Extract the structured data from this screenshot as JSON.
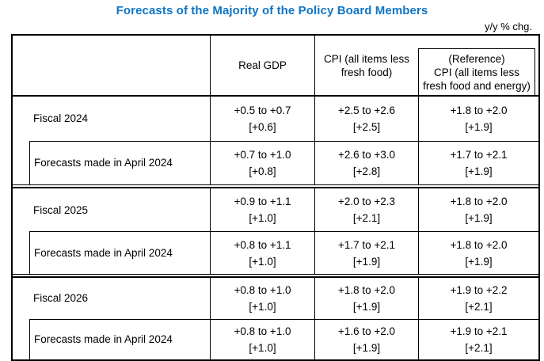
{
  "title": "Forecasts of the Majority of the Policy Board Members",
  "unit_note": "y/y % chg.",
  "header": {
    "label": "",
    "real_gdp": "Real GDP",
    "cpi": "CPI (all items less\nfresh food)",
    "reference": "(Reference)\nCPI (all items less\nfresh food and energy)"
  },
  "groups": [
    {
      "fiscal": {
        "label": "Fiscal 2024",
        "gdp": {
          "range": "+0.5 to +0.7",
          "median": "[+0.6]"
        },
        "cpi": {
          "range": "+2.5 to +2.6",
          "median": "[+2.5]"
        },
        "ref": {
          "range": "+1.8 to +2.0",
          "median": "[+1.9]"
        }
      },
      "april": {
        "label": "Forecasts made in April 2024",
        "gdp": {
          "range": "+0.7 to +1.0",
          "median": "[+0.8]"
        },
        "cpi": {
          "range": "+2.6 to +3.0",
          "median": "[+2.8]"
        },
        "ref": {
          "range": "+1.7 to +2.1",
          "median": "[+1.9]"
        }
      }
    },
    {
      "fiscal": {
        "label": "Fiscal 2025",
        "gdp": {
          "range": "+0.9 to +1.1",
          "median": "[+1.0]"
        },
        "cpi": {
          "range": "+2.0 to +2.3",
          "median": "[+2.1]"
        },
        "ref": {
          "range": "+1.8 to +2.0",
          "median": "[+1.9]"
        }
      },
      "april": {
        "label": "Forecasts made in April 2024",
        "gdp": {
          "range": "+0.8 to +1.1",
          "median": "[+1.0]"
        },
        "cpi": {
          "range": "+1.7 to +2.1",
          "median": "[+1.9]"
        },
        "ref": {
          "range": "+1.8 to +2.0",
          "median": "[+1.9]"
        }
      }
    },
    {
      "fiscal": {
        "label": "Fiscal 2026",
        "gdp": {
          "range": "+0.8 to +1.0",
          "median": "[+1.0]"
        },
        "cpi": {
          "range": "+1.8 to +2.0",
          "median": "[+1.9]"
        },
        "ref": {
          "range": "+1.9 to +2.2",
          "median": "[+2.1]"
        }
      },
      "april": {
        "label": "Forecasts made in April 2024",
        "gdp": {
          "range": "+0.8 to +1.0",
          "median": "[+1.0]"
        },
        "cpi": {
          "range": "+1.6 to +2.0",
          "median": "[+1.9]"
        },
        "ref": {
          "range": "+1.9 to +2.1",
          "median": "[+2.1]"
        }
      }
    }
  ],
  "colors": {
    "title_blue": "#0f75c5",
    "border_black": "#000000",
    "background": "#ffffff"
  },
  "chart_data": {
    "type": "table",
    "title": "Forecasts of the Majority of the Policy Board Members",
    "unit": "y/y % chg.",
    "columns": [
      "",
      "Real GDP",
      "CPI (all items less fresh food)",
      "(Reference) CPI (all items less fresh food and energy)"
    ],
    "rows": [
      [
        "Fiscal 2024",
        "+0.5 to +0.7 [+0.6]",
        "+2.5 to +2.6 [+2.5]",
        "+1.8 to +2.0 [+1.9]"
      ],
      [
        "Forecasts made in April 2024",
        "+0.7 to +1.0 [+0.8]",
        "+2.6 to +3.0 [+2.8]",
        "+1.7 to +2.1 [+1.9]"
      ],
      [
        "Fiscal 2025",
        "+0.9 to +1.1 [+1.0]",
        "+2.0 to +2.3 [+2.1]",
        "+1.8 to +2.0 [+1.9]"
      ],
      [
        "Forecasts made in April 2024",
        "+0.8 to +1.1 [+1.0]",
        "+1.7 to +2.1 [+1.9]",
        "+1.8 to +2.0 [+1.9]"
      ],
      [
        "Fiscal 2026",
        "+0.8 to +1.0 [+1.0]",
        "+1.8 to +2.0 [+1.9]",
        "+1.9 to +2.2 [+2.1]"
      ],
      [
        "Forecasts made in April 2024",
        "+0.8 to +1.0 [+1.0]",
        "+1.6 to +2.0 [+1.9]",
        "+1.9 to +2.1 [+2.1]"
      ]
    ]
  }
}
